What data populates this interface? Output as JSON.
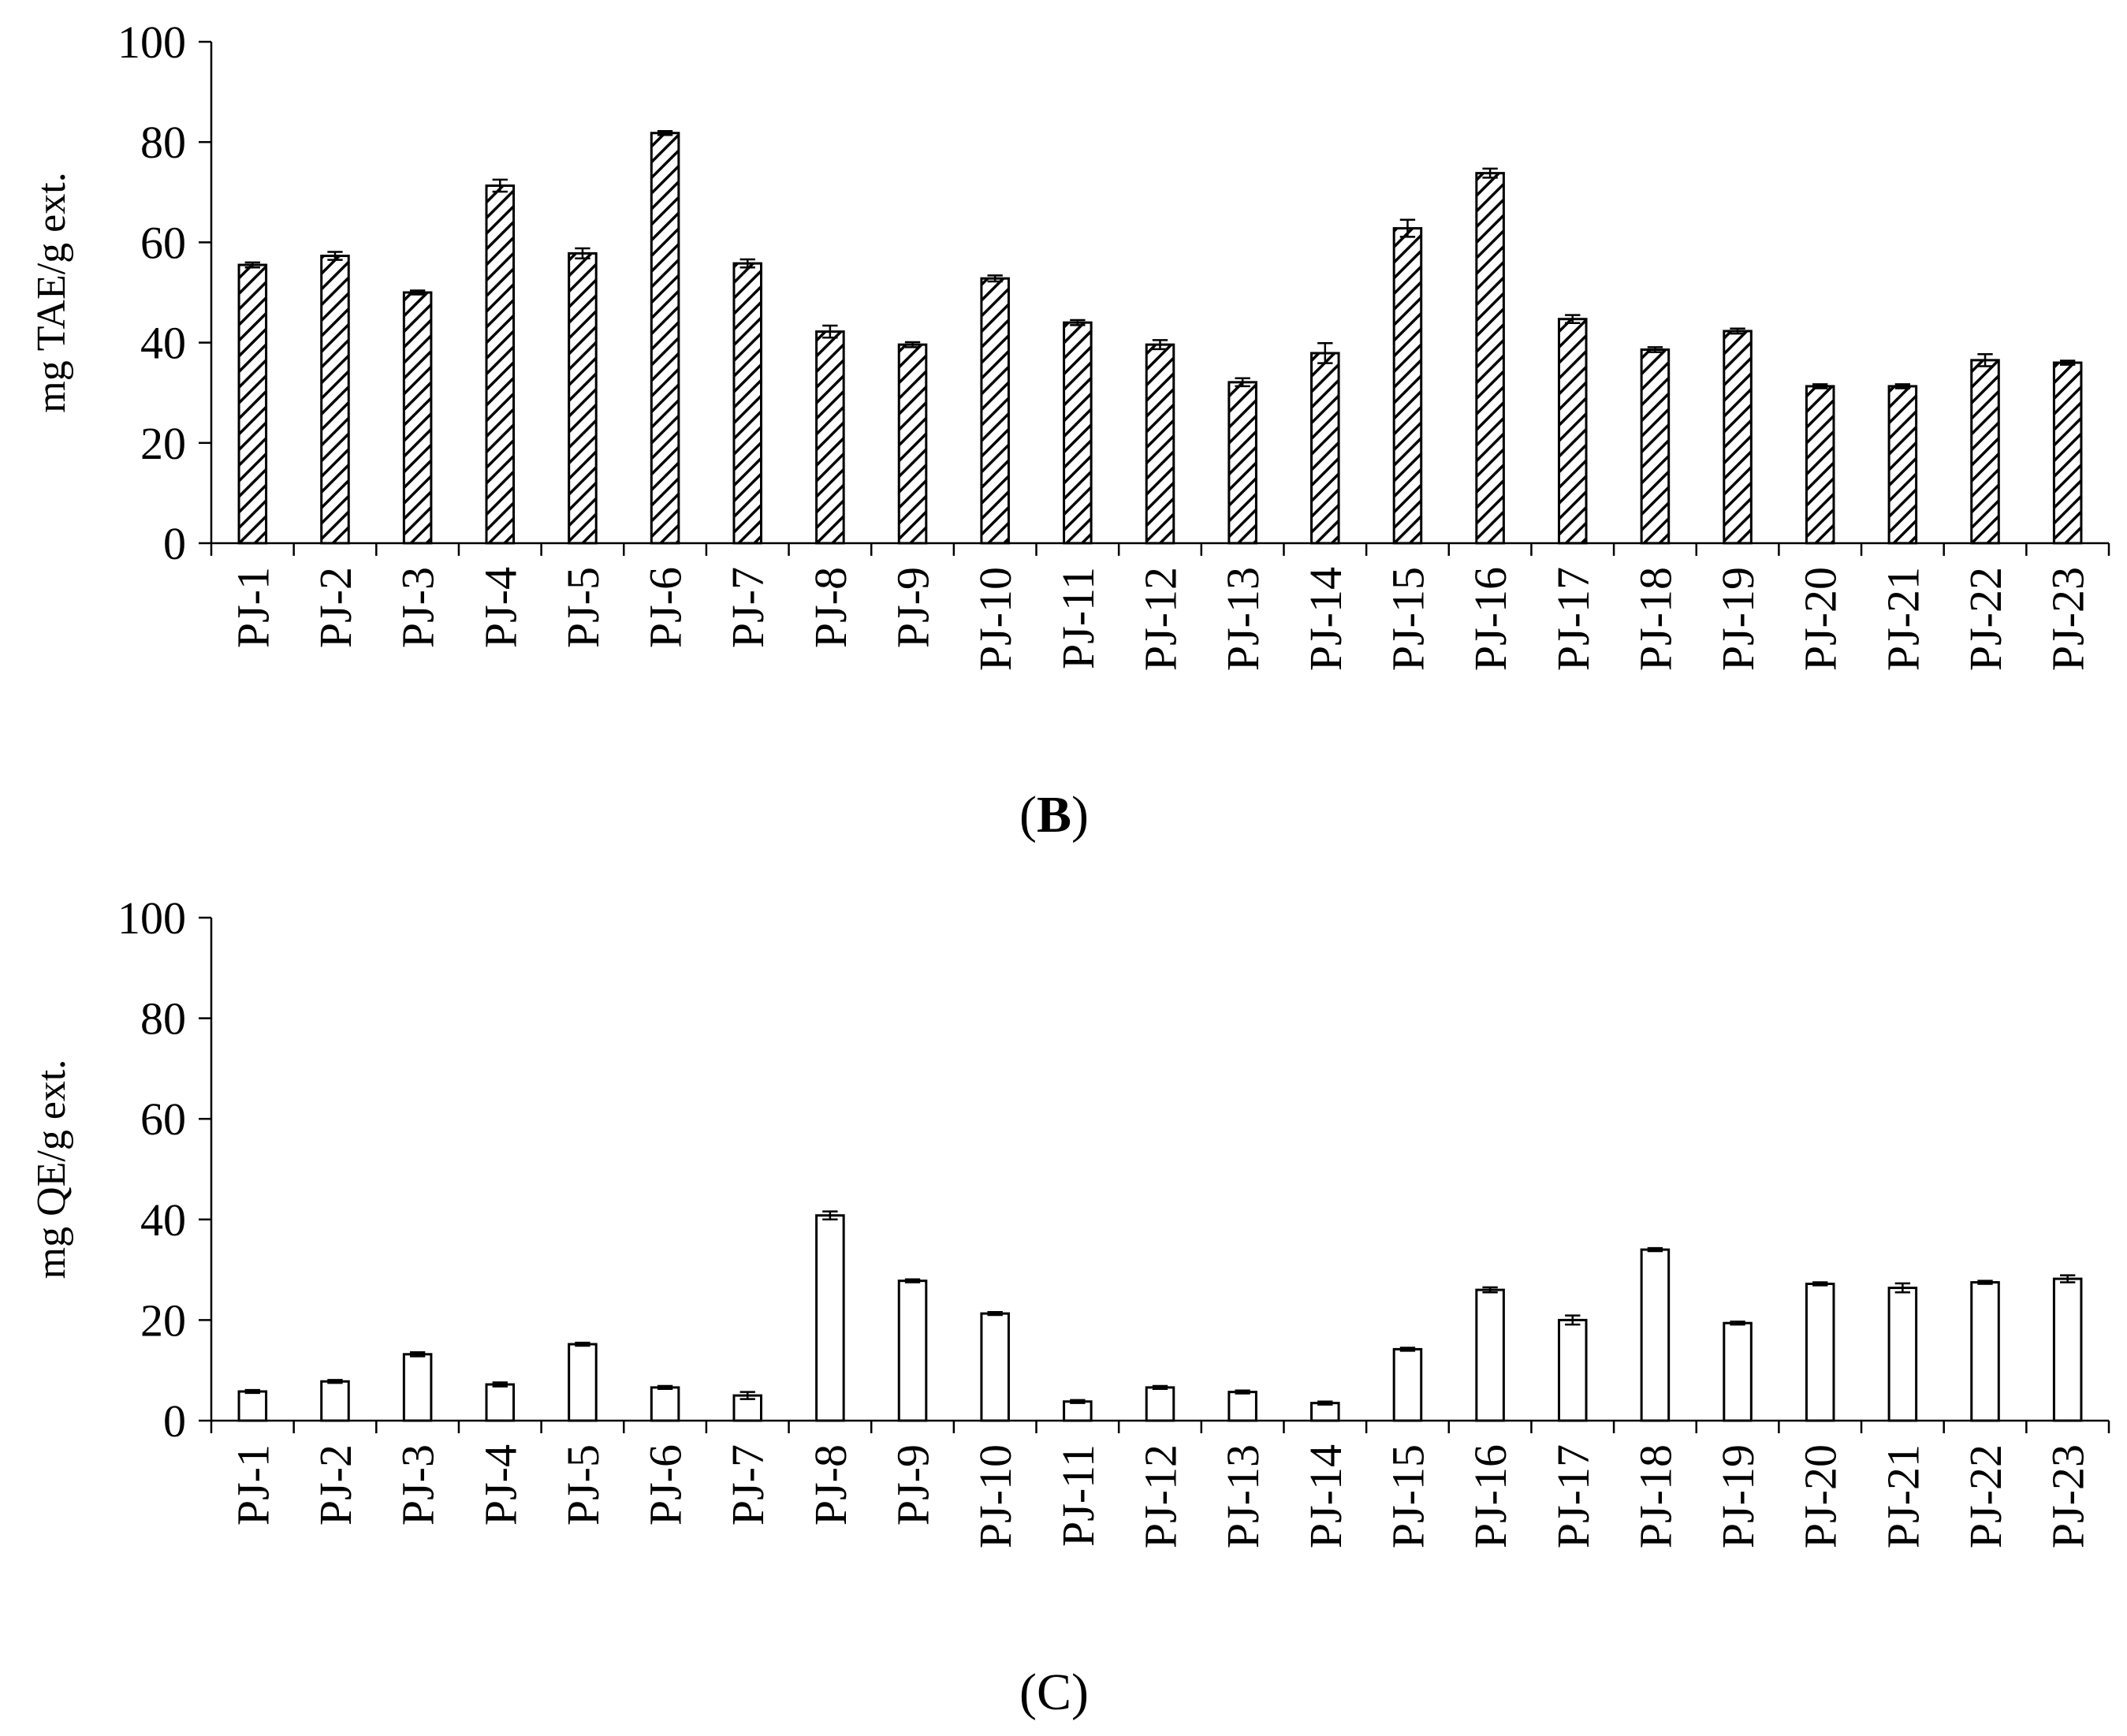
{
  "chart_data": [
    {
      "type": "bar",
      "panel_label": "B",
      "ylabel": "mg TAE/g ext.",
      "ylim": [
        0,
        100
      ],
      "yticks": [
        0,
        20,
        40,
        60,
        80,
        100
      ],
      "pattern": "diagonal-hatch",
      "categories": [
        "PJ-1",
        "PJ-2",
        "PJ-3",
        "PJ-4",
        "PJ-5",
        "PJ-6",
        "PJ-7",
        "PJ-8",
        "PJ-9",
        "PJ-10",
        "PJ-11",
        "PJ-12",
        "PJ-13",
        "PJ-14",
        "PJ-15",
        "PJ-16",
        "PJ-17",
        "PJ-18",
        "PJ-19",
        "PJ-20",
        "PJ-21",
        "PJ-22",
        "PJ-23"
      ],
      "values": [
        55.5,
        57.3,
        50.0,
        71.3,
        57.8,
        81.8,
        55.8,
        42.2,
        39.6,
        52.8,
        44.0,
        39.6,
        32.1,
        37.9,
        62.8,
        73.8,
        44.7,
        38.6,
        42.3,
        31.3,
        31.3,
        36.5,
        36.0
      ],
      "errors": [
        0.5,
        0.8,
        0.4,
        1.2,
        1.0,
        0.4,
        0.8,
        1.2,
        0.5,
        0.6,
        0.5,
        0.9,
        0.8,
        2.0,
        1.7,
        0.9,
        0.8,
        0.5,
        0.5,
        0.4,
        0.4,
        1.2,
        0.4
      ]
    },
    {
      "type": "bar",
      "panel_label": "C",
      "ylabel": "mg QE/g ext.",
      "ylim": [
        0,
        100
      ],
      "yticks": [
        0,
        20,
        40,
        60,
        80,
        100
      ],
      "pattern": "open",
      "categories": [
        "PJ-1",
        "PJ-2",
        "PJ-3",
        "PJ-4",
        "PJ-5",
        "PJ-6",
        "PJ-7",
        "PJ-8",
        "PJ-9",
        "PJ-10",
        "PJ-11",
        "PJ-12",
        "PJ-13",
        "PJ-14",
        "PJ-15",
        "PJ-16",
        "PJ-17",
        "PJ-18",
        "PJ-19",
        "PJ-20",
        "PJ-21",
        "PJ-22",
        "PJ-23"
      ],
      "values": [
        5.8,
        7.8,
        13.2,
        7.2,
        15.2,
        6.6,
        5.0,
        40.8,
        27.8,
        21.3,
        3.8,
        6.6,
        5.7,
        3.5,
        14.2,
        26.0,
        20.0,
        34.0,
        19.4,
        27.2,
        26.4,
        27.5,
        28.2
      ],
      "errors": [
        0.3,
        0.3,
        0.4,
        0.4,
        0.3,
        0.3,
        0.7,
        0.8,
        0.3,
        0.3,
        0.3,
        0.3,
        0.3,
        0.3,
        0.3,
        0.5,
        0.9,
        0.3,
        0.3,
        0.3,
        0.9,
        0.3,
        0.7
      ]
    }
  ]
}
